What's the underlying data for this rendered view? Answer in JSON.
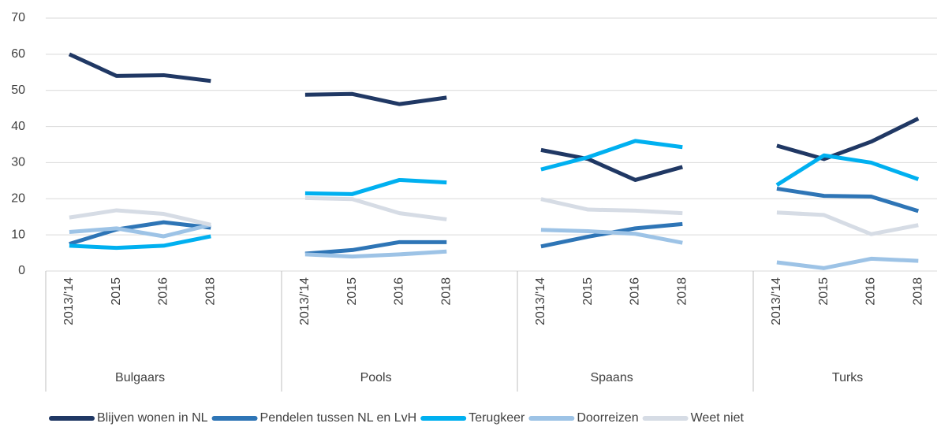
{
  "chart_data": {
    "type": "line",
    "categories": [
      "2013/'14",
      "2015",
      "2016",
      "2018",
      null,
      "2013/'14",
      "2015",
      "2016",
      "2018",
      null,
      "2013/'14",
      "2015",
      "2016",
      "2018",
      null,
      "2013/'14",
      "2015",
      "2016",
      "2018"
    ],
    "groups": [
      "Bulgaars",
      "Pools",
      "Spaans",
      "Turks"
    ],
    "series": [
      {
        "name": "Blijven wonen in NL",
        "color": "#203864",
        "values": [
          60,
          54,
          54.2,
          52.6,
          null,
          48.8,
          49,
          46.2,
          48,
          null,
          33.5,
          31,
          25.2,
          28.8,
          null,
          34.7,
          31,
          35.8,
          42.2
        ]
      },
      {
        "name": "Pendelen tussen NL en LvH",
        "color": "#2e75b6",
        "values": [
          7.5,
          11.5,
          13.5,
          12,
          null,
          4.8,
          5.8,
          8,
          8,
          null,
          6.8,
          9.5,
          11.8,
          13,
          null,
          22.8,
          20.8,
          20.6,
          16.6
        ]
      },
      {
        "name": "Terugkeer",
        "color": "#00b0f0",
        "values": [
          7,
          6.4,
          7,
          9.6,
          null,
          21.5,
          21.3,
          25.2,
          24.5,
          null,
          28.1,
          31.5,
          36,
          34.3,
          null,
          23.8,
          32,
          30,
          25.4
        ]
      },
      {
        "name": "Doorreizen",
        "color": "#9dc3e6",
        "values": [
          10.8,
          11.8,
          9.6,
          12.8,
          null,
          4.6,
          4,
          4.6,
          5.4,
          null,
          11.4,
          11,
          10.3,
          7.8,
          null,
          2.4,
          0.8,
          3.4,
          2.8
        ]
      },
      {
        "name": "Weet niet",
        "color": "#d6dce5",
        "values": [
          14.8,
          16.8,
          15.8,
          12.8,
          null,
          20.2,
          19.9,
          16,
          14.3,
          null,
          19.9,
          17,
          16.7,
          16,
          null,
          16.2,
          15.5,
          10.2,
          12.7
        ]
      }
    ],
    "ylim": [
      0,
      70
    ],
    "yticks": [
      0,
      10,
      20,
      30,
      40,
      50,
      60,
      70
    ],
    "grid": true,
    "legend": "bottom"
  }
}
